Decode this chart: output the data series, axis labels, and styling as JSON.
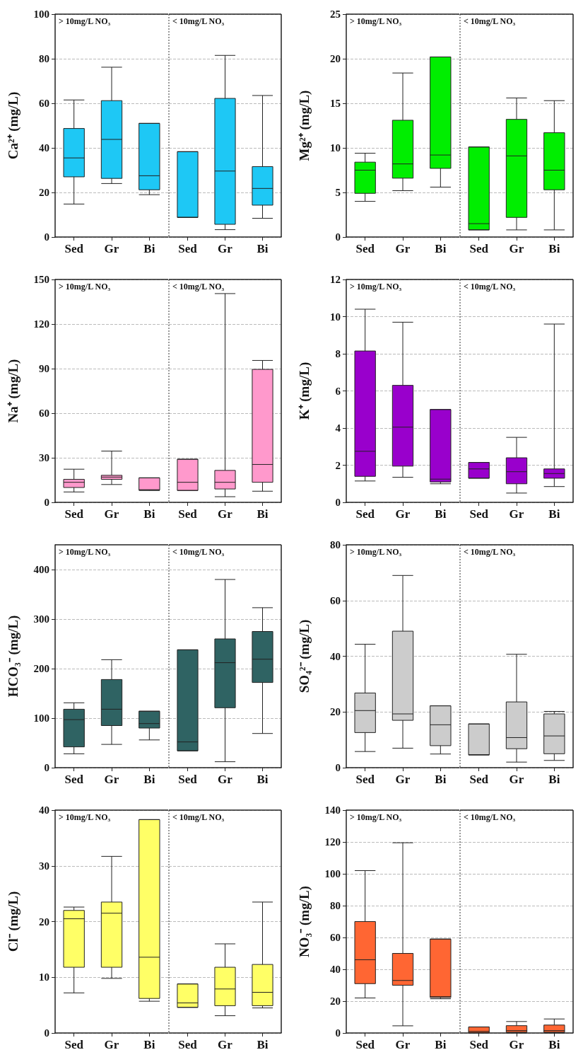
{
  "chart_data": [
    {
      "type": "box",
      "ylabel": "Ca²⁺ (mg/L)",
      "annotations": [
        "> 10mg/L NO₃"
      ],
      "categories": [
        "Sed",
        "Gr",
        "Bi"
      ],
      "ylim": [
        0,
        100
      ],
      "yticks": [
        0,
        20,
        40,
        60,
        80,
        100
      ],
      "grid": "y",
      "series": [
        {
          "color": "#1ec8f5",
          "boxes": [
            {
              "low": 14.8,
              "q1": 27,
              "median": 35.5,
              "q3": 48.7,
              "high": 61.5
            },
            {
              "low": 24,
              "q1": 26.3,
              "median": 43.8,
              "q3": 61.2,
              "high": 76.2
            },
            {
              "low": 19,
              "q1": 21.2,
              "median": 27.5,
              "q3": 51,
              "high": 51
            }
          ]
        }
      ]
    },
    {
      "type": "box",
      "annotations": [
        "< 10mg/L NO₃"
      ],
      "categories": [
        "Sed",
        "Gr",
        "Bi"
      ],
      "ylim": [
        0,
        100
      ],
      "yticks": [
        0,
        20,
        40,
        60,
        80,
        100
      ],
      "grid": "y",
      "tick_labels": "x",
      "series": [
        {
          "color": "#1ec8f5",
          "boxes": [
            {
              "low": 8.8,
              "q1": 8.8,
              "median": 8.8,
              "q3": 38.3,
              "high": 38.3
            },
            {
              "low": 3.3,
              "q1": 5.7,
              "median": 29.6,
              "q3": 62.2,
              "high": 81.5
            },
            {
              "low": 8.4,
              "q1": 14.3,
              "median": 21.8,
              "q3": 31.6,
              "high": 63.5
            }
          ]
        }
      ]
    },
    {
      "type": "box",
      "ylabel": "Mg²⁺ (mg/L)",
      "annotations": [
        "> 10mg/L NO₃"
      ],
      "categories": [
        "Sed",
        "Gr",
        "Bi"
      ],
      "ylim": [
        0,
        25
      ],
      "yticks": [
        0,
        5,
        10,
        15,
        20,
        25
      ],
      "grid": "y",
      "series": [
        {
          "color": "#00ee00",
          "boxes": [
            {
              "low": 4,
              "q1": 4.9,
              "median": 7.5,
              "q3": 8.4,
              "high": 9.4
            },
            {
              "low": 5.2,
              "q1": 6.6,
              "median": 8.2,
              "q3": 13.1,
              "high": 18.4
            },
            {
              "low": 5.6,
              "q1": 7.7,
              "median": 9.2,
              "q3": 20.2,
              "high": 20.2
            }
          ]
        }
      ]
    },
    {
      "type": "box",
      "annotations": [
        "< 10mg/L NO₃"
      ],
      "categories": [
        "Sed",
        "Gr",
        "Bi"
      ],
      "ylim": [
        0,
        25
      ],
      "yticks": [
        0,
        5,
        10,
        15,
        20,
        25
      ],
      "grid": "y",
      "tick_labels": "x",
      "series": [
        {
          "color": "#00ee00",
          "boxes": [
            {
              "low": 0.8,
              "q1": 0.8,
              "median": 1.5,
              "q3": 10.1,
              "high": 10.1
            },
            {
              "low": 0.8,
              "q1": 2.2,
              "median": 9.1,
              "q3": 13.2,
              "high": 15.6
            },
            {
              "low": 0.8,
              "q1": 5.3,
              "median": 7.5,
              "q3": 11.7,
              "high": 15.3
            }
          ]
        }
      ]
    },
    {
      "type": "box",
      "ylabel": "Na⁺ (mg/L)",
      "annotations": [
        "> 10mg/L NO₃"
      ],
      "categories": [
        "Sed",
        "Gr",
        "Bi"
      ],
      "ylim": [
        0,
        150
      ],
      "yticks": [
        0,
        30,
        60,
        90,
        120,
        150
      ],
      "grid": "y",
      "series": [
        {
          "color": "#ff99cc",
          "boxes": [
            {
              "low": 7,
              "q1": 10,
              "median": 13.5,
              "q3": 15.5,
              "high": 22.3
            },
            {
              "low": 12,
              "q1": 15.5,
              "median": 17,
              "q3": 18.2,
              "high": 34.5
            },
            {
              "low": 8,
              "q1": 8.2,
              "median": 8.5,
              "q3": 16.5,
              "high": 16.5
            }
          ]
        }
      ]
    },
    {
      "type": "box",
      "annotations": [
        "< 10mg/L NO₃"
      ],
      "categories": [
        "Sed",
        "Gr",
        "Bi"
      ],
      "ylim": [
        0,
        150
      ],
      "yticks": [
        0,
        30,
        60,
        90,
        120,
        150
      ],
      "grid": "y",
      "tick_labels": "x",
      "series": [
        {
          "color": "#ff99cc",
          "boxes": [
            {
              "low": 8,
              "q1": 8,
              "median": 13.5,
              "q3": 29,
              "high": 29
            },
            {
              "low": 3.8,
              "q1": 9,
              "median": 13.5,
              "q3": 21.5,
              "high": 140.5
            },
            {
              "low": 7.5,
              "q1": 13.5,
              "median": 25.5,
              "q3": 89.5,
              "high": 95.5
            }
          ]
        }
      ]
    },
    {
      "type": "box",
      "ylabel": "K⁺ (mg/L)",
      "annotations": [
        "> 10mg/L NO₃"
      ],
      "categories": [
        "Sed",
        "Gr",
        "Bi"
      ],
      "ylim": [
        0,
        12
      ],
      "yticks": [
        0,
        2,
        4,
        6,
        8,
        10,
        12
      ],
      "grid": "y",
      "series": [
        {
          "color": "#9900cc",
          "boxes": [
            {
              "low": 1.15,
              "q1": 1.4,
              "median": 2.75,
              "q3": 8.15,
              "high": 10.4
            },
            {
              "low": 1.35,
              "q1": 1.95,
              "median": 4.05,
              "q3": 6.3,
              "high": 9.7
            },
            {
              "low": 1.0,
              "q1": 1.1,
              "median": 1.25,
              "q3": 5.0,
              "high": 5.0
            }
          ]
        }
      ]
    },
    {
      "type": "box",
      "annotations": [
        "< 10mg/L NO₃"
      ],
      "categories": [
        "Sed",
        "Gr",
        "Bi"
      ],
      "ylim": [
        0,
        12
      ],
      "yticks": [
        0,
        2,
        4,
        6,
        8,
        10,
        12
      ],
      "grid": "y",
      "tick_labels": "x",
      "series": [
        {
          "color": "#9900cc",
          "boxes": [
            {
              "low": 1.3,
              "q1": 1.3,
              "median": 1.8,
              "q3": 2.15,
              "high": 2.15
            },
            {
              "low": 0.5,
              "q1": 1.0,
              "median": 1.65,
              "q3": 2.4,
              "high": 3.5
            },
            {
              "low": 0.85,
              "q1": 1.3,
              "median": 1.55,
              "q3": 1.8,
              "high": 9.6
            }
          ]
        }
      ]
    },
    {
      "type": "box",
      "ylabel": "HCO₃⁻ (mg/L)",
      "annotations": [
        "> 10mg/L NO₃"
      ],
      "categories": [
        "Sed",
        "Gr",
        "Bi"
      ],
      "ylim": [
        0,
        450
      ],
      "yticks": [
        0,
        100,
        200,
        300,
        400
      ],
      "grid": "y",
      "series": [
        {
          "color": "#2f6363",
          "boxes": [
            {
              "low": 28,
              "q1": 42,
              "median": 97,
              "q3": 118,
              "high": 131
            },
            {
              "low": 47,
              "q1": 85,
              "median": 118,
              "q3": 178,
              "high": 218
            },
            {
              "low": 56,
              "q1": 80,
              "median": 89,
              "q3": 114,
              "high": 114
            }
          ]
        }
      ]
    },
    {
      "type": "box",
      "annotations": [
        "< 10mg/L NO₃"
      ],
      "categories": [
        "Sed",
        "Gr",
        "Bi"
      ],
      "ylim": [
        0,
        450
      ],
      "yticks": [
        0,
        100,
        200,
        300,
        400
      ],
      "grid": "y",
      "tick_labels": "x",
      "series": [
        {
          "color": "#2f6363",
          "boxes": [
            {
              "low": 34,
              "q1": 34,
              "median": 52,
              "q3": 238,
              "high": 238
            },
            {
              "low": 12,
              "q1": 121,
              "median": 212,
              "q3": 260,
              "high": 380
            },
            {
              "low": 69,
              "q1": 172,
              "median": 219,
              "q3": 275,
              "high": 323
            }
          ]
        }
      ]
    },
    {
      "type": "box",
      "ylabel": "SO₄²⁻ (mg/L)",
      "annotations": [
        "> 10mg/L NO₃"
      ],
      "categories": [
        "Sed",
        "Gr",
        "Bi"
      ],
      "ylim": [
        0,
        80
      ],
      "yticks": [
        0,
        20,
        40,
        60,
        80
      ],
      "grid": "y",
      "series": [
        {
          "color": "#cccccc",
          "boxes": [
            {
              "low": 5.8,
              "q1": 12.6,
              "median": 20.5,
              "q3": 26.8,
              "high": 44.3
            },
            {
              "low": 7,
              "q1": 17,
              "median": 19.3,
              "q3": 49,
              "high": 69
            },
            {
              "low": 4.9,
              "q1": 7.9,
              "median": 15.4,
              "q3": 22.2,
              "high": 22.2
            }
          ]
        }
      ]
    },
    {
      "type": "box",
      "annotations": [
        "< 10mg/L NO₃"
      ],
      "categories": [
        "Sed",
        "Gr",
        "Bi"
      ],
      "ylim": [
        0,
        80
      ],
      "yticks": [
        0,
        20,
        40,
        60,
        80
      ],
      "grid": "y",
      "tick_labels": "x",
      "series": [
        {
          "color": "#cccccc",
          "boxes": [
            {
              "low": 4.6,
              "q1": 4.6,
              "median": 4.6,
              "q3": 15.7,
              "high": 15.7
            },
            {
              "low": 2,
              "q1": 6.8,
              "median": 10.8,
              "q3": 23.6,
              "high": 40.7
            },
            {
              "low": 2.6,
              "q1": 5,
              "median": 11.4,
              "q3": 19.3,
              "high": 20.2
            }
          ]
        }
      ]
    },
    {
      "type": "box",
      "ylabel": "Cl⁻ (mg/L)",
      "annotations": [
        "> 10mg/L NO₃"
      ],
      "categories": [
        "Sed",
        "Gr",
        "Bi"
      ],
      "ylim": [
        0,
        40
      ],
      "yticks": [
        0,
        10,
        20,
        30,
        40
      ],
      "grid": "y",
      "series": [
        {
          "color": "#ffff66",
          "boxes": [
            {
              "low": 7.2,
              "q1": 11.8,
              "median": 20.5,
              "q3": 22,
              "high": 22.6
            },
            {
              "low": 9.8,
              "q1": 11.8,
              "median": 21.5,
              "q3": 23.5,
              "high": 31.7
            },
            {
              "low": 5.7,
              "q1": 6.2,
              "median": 13.6,
              "q3": 38.3,
              "high": 38.3
            }
          ]
        }
      ]
    },
    {
      "type": "box",
      "annotations": [
        "< 10mg/L NO₃"
      ],
      "categories": [
        "Sed",
        "Gr",
        "Bi"
      ],
      "ylim": [
        0,
        40
      ],
      "yticks": [
        0,
        10,
        20,
        30,
        40
      ],
      "grid": "y",
      "tick_labels": "x",
      "series": [
        {
          "color": "#ffff66",
          "boxes": [
            {
              "low": 4.6,
              "q1": 4.6,
              "median": 5.4,
              "q3": 8.8,
              "high": 8.8
            },
            {
              "low": 3.1,
              "q1": 4.9,
              "median": 7.9,
              "q3": 11.8,
              "high": 16
            },
            {
              "low": 4.5,
              "q1": 4.9,
              "median": 7.3,
              "q3": 12.3,
              "high": 23.5
            }
          ]
        }
      ]
    },
    {
      "type": "box",
      "ylabel": "NO₃⁻ (mg/L)",
      "annotations": [
        "> 10mg/L NO₃"
      ],
      "categories": [
        "Sed",
        "Gr",
        "Bi"
      ],
      "ylim": [
        0,
        140
      ],
      "yticks": [
        0,
        20,
        40,
        60,
        80,
        100,
        120,
        140
      ],
      "grid": "y",
      "series": [
        {
          "color": "#ff6633",
          "boxes": [
            {
              "low": 22,
              "q1": 31,
              "median": 46,
              "q3": 70,
              "high": 102
            },
            {
              "low": 4.5,
              "q1": 30,
              "median": 33,
              "q3": 50,
              "high": 119.5
            },
            {
              "low": 21.5,
              "q1": 22.3,
              "median": 22.8,
              "q3": 59,
              "high": 59
            }
          ]
        }
      ]
    },
    {
      "type": "box",
      "annotations": [
        "< 10mg/L NO₃"
      ],
      "categories": [
        "Sed",
        "Gr",
        "Bi"
      ],
      "ylim": [
        0,
        140
      ],
      "yticks": [
        0,
        20,
        40,
        60,
        80,
        100,
        120,
        140
      ],
      "grid": "y",
      "tick_labels": "x",
      "series": [
        {
          "color": "#ff6633",
          "boxes": [
            {
              "low": 0,
              "q1": 0.3,
              "median": 1,
              "q3": 3.8,
              "high": 3.8
            },
            {
              "low": 0,
              "q1": 0.5,
              "median": 1.5,
              "q3": 4.6,
              "high": 7.2
            },
            {
              "low": 0,
              "q1": 0.5,
              "median": 1.5,
              "q3": 5,
              "high": 8.8
            }
          ]
        }
      ]
    }
  ]
}
